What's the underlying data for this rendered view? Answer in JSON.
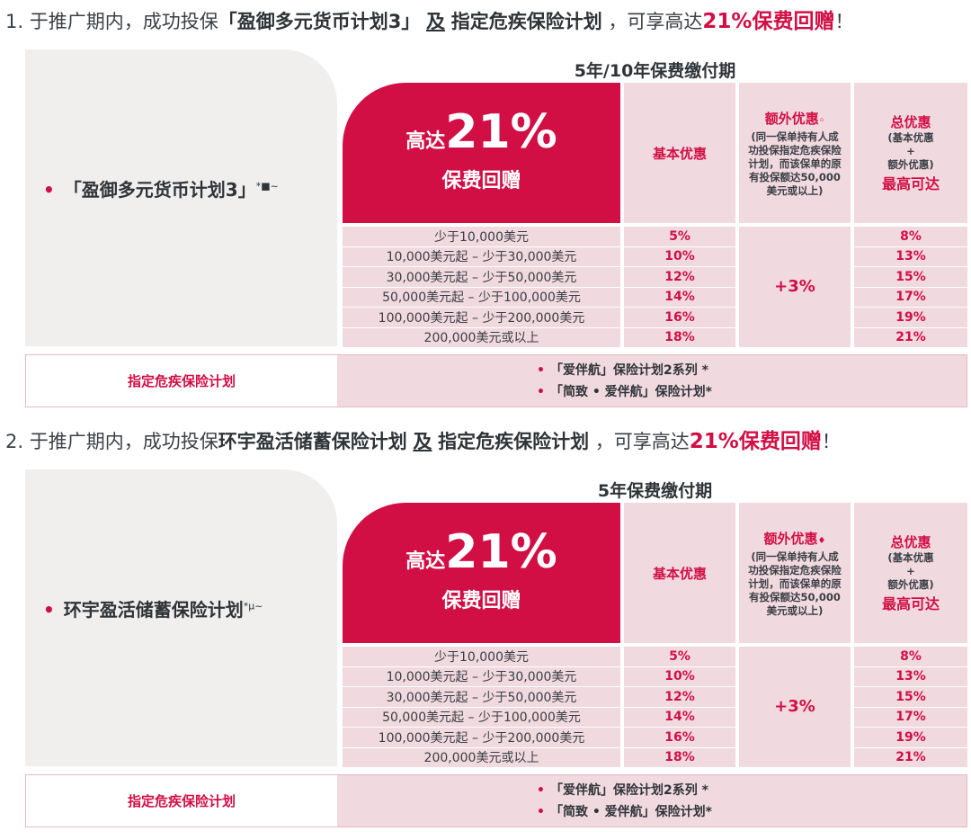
{
  "colors": {
    "accent": "#d20f45",
    "pink": "#f0d9df",
    "panel": "#f0efee"
  },
  "sections": [
    {
      "title": {
        "prefix": "1. 于推广期内，成功投保",
        "plan": "「盈御多元货币计划3」",
        "and": "及",
        "ci": "指定危疾保险计划",
        "mid": "，可享高达",
        "highlight": "21%保费回赠",
        "end": "！"
      },
      "plan_name": "「盈御多元货币计划3」",
      "plan_mark": "*■~",
      "period": "5年/10年保费缴付期",
      "badge": {
        "prefix": "高达",
        "value": "21%",
        "label": "保费回赠"
      },
      "headers": {
        "basic": "基本优惠",
        "extra": "额外优惠",
        "extra_mark": "◦",
        "extra_note": "(同一保单持有人成功投保指定危疾保险计划，而该保单的原有投保额达50,000美元或以上)",
        "total": "总优惠",
        "total_note1": "(基本优惠",
        "total_plus": "+",
        "total_note2": "额外优惠)",
        "total_max": "最高可达"
      },
      "extra_value": "+3%",
      "rows": [
        [
          "少于10,000美元",
          "5%",
          "8%"
        ],
        [
          "10,000美元起 – 少于30,000美元",
          "10%",
          "13%"
        ],
        [
          "30,000美元起 – 少于50,000美元",
          "12%",
          "15%"
        ],
        [
          "50,000美元起 – 少于100,000美元",
          "14%",
          "17%"
        ],
        [
          "100,000美元起 – 少于200,000美元",
          "16%",
          "19%"
        ],
        [
          "200,000美元或以上",
          "18%",
          "21%"
        ]
      ],
      "ci_label": "指定危疾保险计划",
      "ci_plans": [
        "「爱伴航」保险计划2系列 *",
        "「简致 • 爱伴航」保险计划*"
      ]
    },
    {
      "title": {
        "prefix": "2. 于推广期内，成功投保",
        "plan": "环宇盈活储蓄保险计划",
        "and": "及",
        "ci": "指定危疾保险计划",
        "mid": "，可享高达",
        "highlight": "21%保费回赠",
        "end": "！"
      },
      "plan_name": "环宇盈活储蓄保险计划",
      "plan_mark": "*µ~",
      "period": "5年保费缴付期",
      "badge": {
        "prefix": "高达",
        "value": "21%",
        "label": "保费回赠"
      },
      "headers": {
        "basic": "基本优惠",
        "extra": "额外优惠",
        "extra_mark": "♦",
        "extra_note": "(同一保单持有人成功投保指定危疾保险计划，而该保单的原有投保额达50,000美元或以上)",
        "total": "总优惠",
        "total_note1": "(基本优惠",
        "total_plus": "+",
        "total_note2": "额外优惠)",
        "total_max": "最高可达"
      },
      "extra_value": "+3%",
      "rows": [
        [
          "少于10,000美元",
          "5%",
          "8%"
        ],
        [
          "10,000美元起 – 少于30,000美元",
          "10%",
          "13%"
        ],
        [
          "30,000美元起 – 少于50,000美元",
          "12%",
          "15%"
        ],
        [
          "50,000美元起 – 少于100,000美元",
          "14%",
          "17%"
        ],
        [
          "100,000美元起 – 少于200,000美元",
          "16%",
          "19%"
        ],
        [
          "200,000美元或以上",
          "18%",
          "21%"
        ]
      ],
      "ci_label": "指定危疾保险计划",
      "ci_plans": [
        "「爱伴航」保险计划2系列 *",
        "「简致 • 爱伴航」保险计划*"
      ]
    }
  ]
}
